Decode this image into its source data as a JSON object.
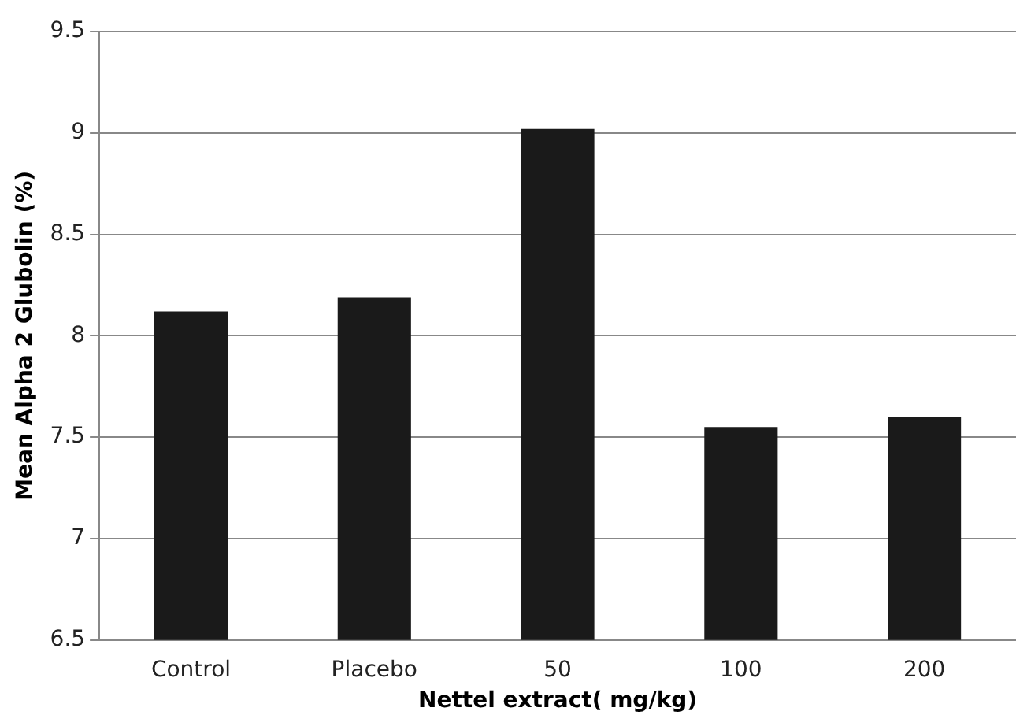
{
  "chart_data": {
    "type": "bar",
    "xlabel": "Nettel extract( mg/kg)",
    "ylabel": "Mean Alpha 2 Glubolin (%)",
    "categories": [
      "Control",
      "Placebo",
      "50",
      "100",
      "200"
    ],
    "values": [
      8.12,
      8.19,
      9.02,
      7.55,
      7.6
    ],
    "color": "#1a1a1a",
    "ylim": [
      6.5,
      9.5
    ],
    "yticks": [
      6.5,
      7,
      7.5,
      8,
      8.5,
      9,
      9.5
    ],
    "grid": "y"
  }
}
